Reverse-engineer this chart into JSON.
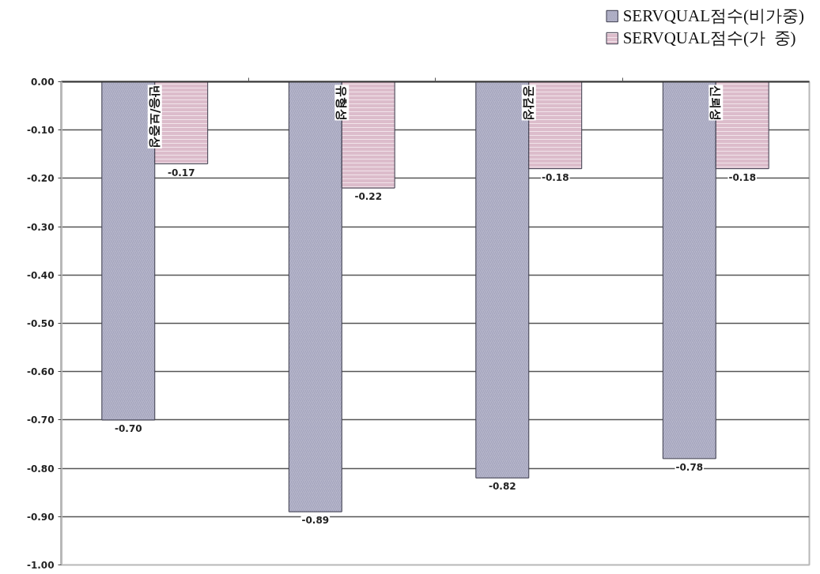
{
  "chart_data": {
    "type": "bar",
    "categories": [
      "반응/보증성",
      "유형성",
      "공감성",
      "신뢰성"
    ],
    "series": [
      {
        "name": "SERVQUAL점수(비가중)",
        "color": "#b8b8cc",
        "values": [
          -0.7,
          -0.89,
          -0.82,
          -0.78
        ],
        "value_labels": [
          "-0.70",
          "-0.89",
          "-0.82",
          "-0.78"
        ]
      },
      {
        "name": "SERVQUAL점수(가  중)",
        "color": "#dcbccb",
        "values": [
          -0.17,
          -0.22,
          -0.18,
          -0.18
        ],
        "value_labels": [
          "-0.17",
          "-0.22",
          "-0.18",
          "-0.18"
        ]
      }
    ],
    "ylim": [
      -1.0,
      0.0
    ],
    "yticks": [
      {
        "value": 0,
        "label": "0.00"
      },
      {
        "value": -0.1,
        "label": "-0.10"
      },
      {
        "value": -0.2,
        "label": "-0.20"
      },
      {
        "value": -0.3,
        "label": "-0.30"
      },
      {
        "value": -0.4,
        "label": "-0.40"
      },
      {
        "value": -0.5,
        "label": "-0.50"
      },
      {
        "value": -0.6,
        "label": "-0.60"
      },
      {
        "value": -0.7,
        "label": "-0.70"
      },
      {
        "value": -0.8,
        "label": "-0.80"
      },
      {
        "value": -0.9,
        "label": "-0.90"
      },
      {
        "value": -1.0,
        "label": "-1.00"
      }
    ],
    "grid": "y",
    "legend": "top right"
  }
}
